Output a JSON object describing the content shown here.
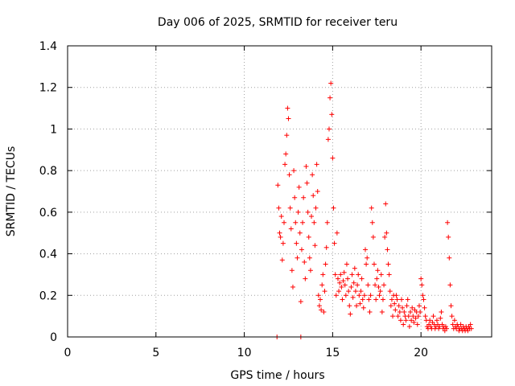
{
  "chart_data": {
    "type": "scatter",
    "title": "Day 006 of 2025, SRMTID for receiver teru",
    "xlabel": "GPS time / hours",
    "ylabel": "SRMTID / TECUs",
    "xlim": [
      0,
      24
    ],
    "ylim": [
      0,
      1.4
    ],
    "xticks": [
      0,
      5,
      10,
      15,
      20
    ],
    "yticks": [
      0,
      0.2,
      0.4,
      0.6,
      0.8,
      1,
      1.2,
      1.4
    ],
    "x_tick_labels": [
      "0",
      "5",
      "10",
      "15",
      "20"
    ],
    "y_tick_labels": [
      "0",
      "0.2",
      "0.4",
      "0.6",
      "0.8",
      "1",
      "1.2",
      "1.4"
    ],
    "grid": true,
    "marker": "+",
    "color": "#ff0000",
    "series": [
      {
        "name": "SRMTID",
        "points": [
          [
            11.85,
            0.0
          ],
          [
            13.2,
            0.0
          ],
          [
            11.9,
            0.73
          ],
          [
            11.95,
            0.62
          ],
          [
            12.0,
            0.5
          ],
          [
            12.05,
            0.48
          ],
          [
            12.1,
            0.58
          ],
          [
            12.15,
            0.37
          ],
          [
            12.2,
            0.45
          ],
          [
            12.25,
            0.55
          ],
          [
            12.3,
            0.83
          ],
          [
            12.35,
            0.88
          ],
          [
            12.4,
            0.97
          ],
          [
            12.45,
            1.1
          ],
          [
            12.5,
            1.05
          ],
          [
            12.55,
            0.78
          ],
          [
            12.6,
            0.62
          ],
          [
            12.65,
            0.52
          ],
          [
            12.7,
            0.32
          ],
          [
            12.75,
            0.24
          ],
          [
            12.8,
            0.8
          ],
          [
            12.85,
            0.67
          ],
          [
            12.9,
            0.55
          ],
          [
            12.95,
            0.45
          ],
          [
            13.0,
            0.38
          ],
          [
            13.05,
            0.6
          ],
          [
            13.1,
            0.72
          ],
          [
            13.15,
            0.5
          ],
          [
            13.2,
            0.17
          ],
          [
            13.25,
            0.42
          ],
          [
            13.3,
            0.55
          ],
          [
            13.35,
            0.67
          ],
          [
            13.4,
            0.36
          ],
          [
            13.45,
            0.28
          ],
          [
            13.5,
            0.82
          ],
          [
            13.55,
            0.74
          ],
          [
            13.6,
            0.6
          ],
          [
            13.65,
            0.48
          ],
          [
            13.7,
            0.38
          ],
          [
            13.75,
            0.32
          ],
          [
            13.8,
            0.58
          ],
          [
            13.85,
            0.78
          ],
          [
            13.9,
            0.68
          ],
          [
            13.95,
            0.55
          ],
          [
            14.0,
            0.44
          ],
          [
            14.05,
            0.62
          ],
          [
            14.1,
            0.83
          ],
          [
            14.15,
            0.7
          ],
          [
            14.2,
            0.2
          ],
          [
            14.25,
            0.15
          ],
          [
            14.3,
            0.18
          ],
          [
            14.35,
            0.13
          ],
          [
            14.4,
            0.25
          ],
          [
            14.45,
            0.3
          ],
          [
            14.5,
            0.12
          ],
          [
            14.55,
            0.22
          ],
          [
            14.6,
            0.35
          ],
          [
            14.65,
            0.43
          ],
          [
            14.7,
            0.55
          ],
          [
            14.75,
            0.95
          ],
          [
            14.8,
            1.0
          ],
          [
            14.85,
            1.15
          ],
          [
            14.9,
            1.22
          ],
          [
            14.95,
            1.07
          ],
          [
            15.0,
            0.86
          ],
          [
            15.05,
            0.62
          ],
          [
            15.1,
            0.45
          ],
          [
            15.15,
            0.3
          ],
          [
            15.2,
            0.2
          ],
          [
            15.25,
            0.5
          ],
          [
            15.3,
            0.28
          ],
          [
            15.35,
            0.22
          ],
          [
            15.4,
            0.26
          ],
          [
            15.45,
            0.3
          ],
          [
            15.5,
            0.24
          ],
          [
            15.55,
            0.18
          ],
          [
            15.6,
            0.27
          ],
          [
            15.65,
            0.31
          ],
          [
            15.7,
            0.25
          ],
          [
            15.75,
            0.2
          ],
          [
            15.8,
            0.35
          ],
          [
            15.85,
            0.28
          ],
          [
            15.9,
            0.22
          ],
          [
            15.95,
            0.15
          ],
          [
            16.0,
            0.11
          ],
          [
            16.05,
            0.24
          ],
          [
            16.1,
            0.3
          ],
          [
            16.15,
            0.19
          ],
          [
            16.2,
            0.26
          ],
          [
            16.25,
            0.33
          ],
          [
            16.3,
            0.22
          ],
          [
            16.35,
            0.15
          ],
          [
            16.4,
            0.25
          ],
          [
            16.45,
            0.3
          ],
          [
            16.5,
            0.2
          ],
          [
            16.55,
            0.16
          ],
          [
            16.6,
            0.22
          ],
          [
            16.65,
            0.28
          ],
          [
            16.7,
            0.18
          ],
          [
            16.75,
            0.14
          ],
          [
            16.8,
            0.2
          ],
          [
            16.85,
            0.42
          ],
          [
            16.9,
            0.35
          ],
          [
            16.95,
            0.38
          ],
          [
            17.0,
            0.25
          ],
          [
            17.05,
            0.18
          ],
          [
            17.1,
            0.12
          ],
          [
            17.15,
            0.2
          ],
          [
            17.2,
            0.62
          ],
          [
            17.25,
            0.55
          ],
          [
            17.3,
            0.48
          ],
          [
            17.35,
            0.35
          ],
          [
            17.4,
            0.25
          ],
          [
            17.45,
            0.18
          ],
          [
            17.5,
            0.28
          ],
          [
            17.55,
            0.32
          ],
          [
            17.6,
            0.24
          ],
          [
            17.65,
            0.2
          ],
          [
            17.7,
            0.22
          ],
          [
            17.75,
            0.3
          ],
          [
            17.8,
            0.12
          ],
          [
            17.85,
            0.18
          ],
          [
            17.9,
            0.25
          ],
          [
            17.95,
            0.48
          ],
          [
            18.0,
            0.64
          ],
          [
            18.05,
            0.5
          ],
          [
            18.1,
            0.42
          ],
          [
            18.15,
            0.35
          ],
          [
            18.2,
            0.3
          ],
          [
            18.25,
            0.22
          ],
          [
            18.3,
            0.15
          ],
          [
            18.35,
            0.18
          ],
          [
            18.4,
            0.1
          ],
          [
            18.45,
            0.2
          ],
          [
            18.5,
            0.16
          ],
          [
            18.55,
            0.13
          ],
          [
            18.6,
            0.2
          ],
          [
            18.65,
            0.18
          ],
          [
            18.7,
            0.1
          ],
          [
            18.75,
            0.15
          ],
          [
            18.8,
            0.12
          ],
          [
            18.85,
            0.08
          ],
          [
            18.9,
            0.18
          ],
          [
            18.95,
            0.14
          ],
          [
            19.0,
            0.06
          ],
          [
            19.05,
            0.12
          ],
          [
            19.1,
            0.1
          ],
          [
            19.15,
            0.08
          ],
          [
            19.2,
            0.15
          ],
          [
            19.25,
            0.18
          ],
          [
            19.3,
            0.1
          ],
          [
            19.35,
            0.05
          ],
          [
            19.4,
            0.12
          ],
          [
            19.45,
            0.08
          ],
          [
            19.5,
            0.14
          ],
          [
            19.55,
            0.1
          ],
          [
            19.6,
            0.07
          ],
          [
            19.65,
            0.13
          ],
          [
            19.7,
            0.09
          ],
          [
            19.75,
            0.12
          ],
          [
            19.8,
            0.06
          ],
          [
            19.85,
            0.1
          ],
          [
            19.9,
            0.15
          ],
          [
            19.95,
            0.12
          ],
          [
            20.0,
            0.28
          ],
          [
            20.05,
            0.25
          ],
          [
            20.1,
            0.2
          ],
          [
            20.15,
            0.18
          ],
          [
            20.2,
            0.14
          ],
          [
            20.25,
            0.1
          ],
          [
            20.3,
            0.08
          ],
          [
            20.35,
            0.05
          ],
          [
            20.4,
            0.04
          ],
          [
            20.45,
            0.06
          ],
          [
            20.5,
            0.08
          ],
          [
            20.55,
            0.05
          ],
          [
            20.6,
            0.04
          ],
          [
            20.65,
            0.07
          ],
          [
            20.7,
            0.1
          ],
          [
            20.75,
            0.06
          ],
          [
            20.8,
            0.04
          ],
          [
            20.85,
            0.05
          ],
          [
            20.9,
            0.08
          ],
          [
            20.95,
            0.06
          ],
          [
            21.0,
            0.04
          ],
          [
            21.05,
            0.05
          ],
          [
            21.1,
            0.09
          ],
          [
            21.15,
            0.12
          ],
          [
            21.2,
            0.06
          ],
          [
            21.25,
            0.04
          ],
          [
            21.3,
            0.05
          ],
          [
            21.35,
            0.03
          ],
          [
            21.4,
            0.05
          ],
          [
            21.45,
            0.04
          ],
          [
            21.5,
            0.55
          ],
          [
            21.55,
            0.48
          ],
          [
            21.6,
            0.38
          ],
          [
            21.65,
            0.25
          ],
          [
            21.7,
            0.15
          ],
          [
            21.75,
            0.1
          ],
          [
            21.8,
            0.06
          ],
          [
            21.85,
            0.04
          ],
          [
            21.9,
            0.08
          ],
          [
            21.95,
            0.05
          ],
          [
            22.0,
            0.04
          ],
          [
            22.05,
            0.06
          ],
          [
            22.1,
            0.05
          ],
          [
            22.15,
            0.03
          ],
          [
            22.2,
            0.04
          ],
          [
            22.25,
            0.06
          ],
          [
            22.3,
            0.04
          ],
          [
            22.35,
            0.03
          ],
          [
            22.4,
            0.05
          ],
          [
            22.45,
            0.04
          ],
          [
            22.5,
            0.03
          ],
          [
            22.55,
            0.05
          ],
          [
            22.6,
            0.04
          ],
          [
            22.65,
            0.03
          ],
          [
            22.7,
            0.05
          ],
          [
            22.75,
            0.04
          ],
          [
            22.8,
            0.06
          ],
          [
            22.85,
            0.04
          ]
        ]
      }
    ]
  }
}
